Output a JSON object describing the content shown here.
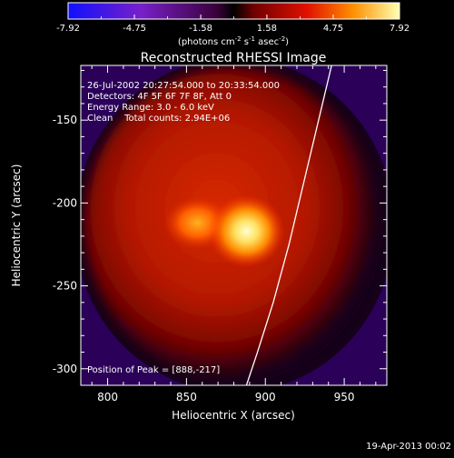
{
  "chart_data": {
    "type": "heatmap",
    "title": "Reconstructed RHESSI Image",
    "xlabel": "Heliocentric X (arcsec)",
    "ylabel": "Heliocentric Y (arcsec)",
    "xlim": [
      783,
      977
    ],
    "ylim": [
      -310,
      -117
    ],
    "x_ticks": [
      800,
      850,
      900,
      950
    ],
    "y_ticks": [
      -300,
      -250,
      -200,
      -150
    ],
    "colorbar": {
      "min": -7.92,
      "max": 7.92,
      "ticks": [
        "-7.92",
        "-4.75",
        "-1.58",
        "1.58",
        "4.75",
        "7.92"
      ],
      "unit_prefix": "(photons cm",
      "unit_sup1": "-2",
      "unit_mid": " s",
      "unit_sup2": "-1",
      "unit_mid2": " asec",
      "unit_sup3": "-2",
      "unit_suffix": ")"
    },
    "annotations": [
      "26-Jul-2002 20:27:54.000 to 20:33:54.000",
      "Detectors: 4F 5F 6F 7F 8F, Att 0",
      "Energy Range: 3.0 - 6.0 keV",
      "Clean    Total counts: 2.94E+06"
    ],
    "peak_label": "Position of Peak = [888,-217]",
    "peak": [
      888,
      -217
    ],
    "secondary_source": [
      857,
      -212
    ],
    "limb": [
      [
        888,
        -310
      ],
      [
        895,
        -290
      ],
      [
        905,
        -260
      ],
      [
        915,
        -225
      ],
      [
        925,
        -185
      ],
      [
        935,
        -145
      ],
      [
        942,
        -117
      ]
    ],
    "footer_date": "19-Apr-2013 00:02"
  }
}
